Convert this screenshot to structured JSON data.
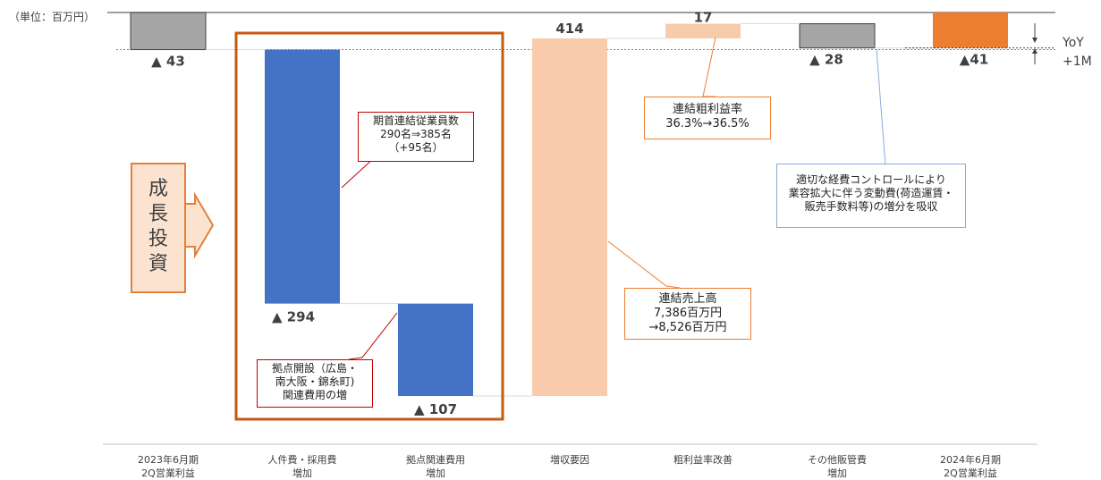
{
  "unit_label": "（単位：百万円）",
  "yoy": {
    "line1": "YoY",
    "line2": "+1M"
  },
  "growth_label": "成\n長\n投\n資",
  "categories": [
    "2023年6月期\n2Q営業利益",
    "人件費・採用費\n増加",
    "拠点関連費用\n増加",
    "増収要因",
    "粗利益率改善",
    "その他販管費\n増加",
    "2024年6月期\n2Q営業利益"
  ],
  "chart_data": {
    "type": "bar",
    "subtype": "waterfall",
    "title": "",
    "unit": "百万円",
    "categories": [
      "2023年6月期2Q営業利益",
      "人件費・採用費増加",
      "拠点関連費用増加",
      "増収要因",
      "粗利益率改善",
      "その他販管費増加",
      "2024年6月期2Q営業利益"
    ],
    "values": [
      -43,
      -294,
      -107,
      414,
      17,
      -28,
      -41
    ],
    "labels": [
      "▲ 43",
      "▲ 294",
      "▲ 107",
      "414",
      "17",
      "▲ 28",
      "▲41"
    ],
    "colors": [
      "#a6a6a6",
      "#4472c4",
      "#4472c4",
      "#f8cbad",
      "#f8cbad",
      "#a6a6a6",
      "#ed7d31"
    ],
    "legend": "none"
  },
  "callouts": {
    "employees": "期首連結従業員数\n290名⇒385名\n（+95名）",
    "branch": "拠点開設（広島・\n南大阪・錦糸町)\n関連費用の増",
    "gross_margin": "連結粗利益率\n36.3%→36.5%",
    "sga": "適切な経費コントロールにより\n業容拡大に伴う変動費(荷造運賃・\n販売手数料等)の増分を吸収",
    "sales": "連結売上高\n7,386百万円\n→8,526百万円"
  },
  "colors": {
    "gray": "#a6a6a6",
    "blue": "#4472c4",
    "peach": "#f8cbad",
    "orange": "#ed7d31",
    "frame_orange": "#c55a11"
  }
}
